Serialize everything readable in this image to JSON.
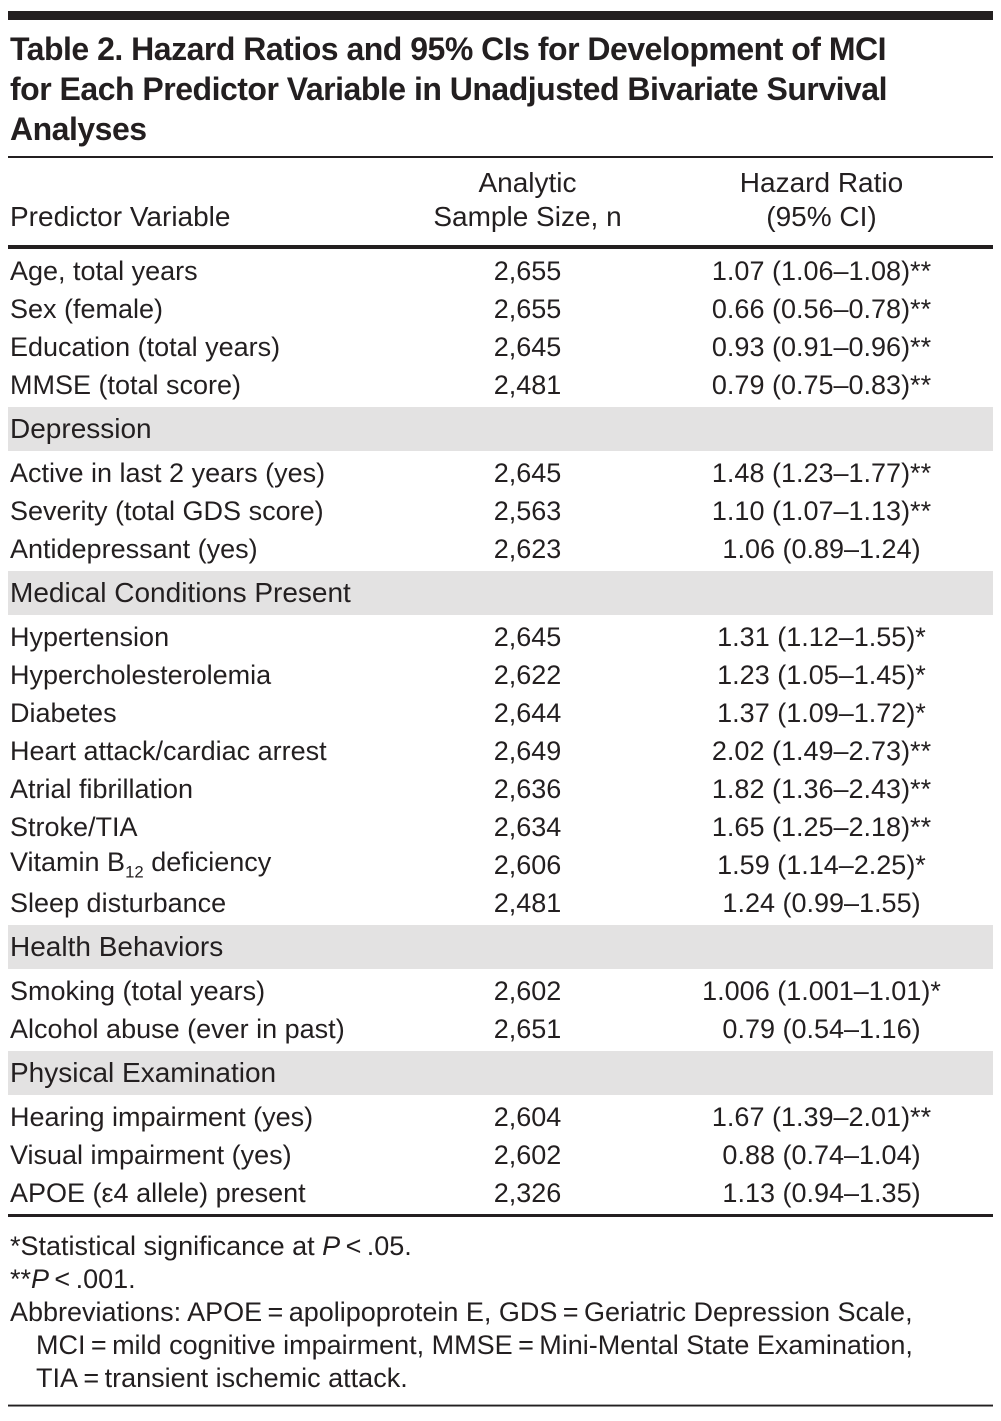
{
  "colors": {
    "text": "#231f20",
    "section_band": "#e3e2e2",
    "rule": "#231f20"
  },
  "table": {
    "title_lines": [
      "Table 2. Hazard Ratios and 95% CIs for Development of MCI",
      "for Each Predictor Variable in Unadjusted Bivariate Survival",
      "Analyses"
    ],
    "columns": [
      {
        "line1": "",
        "line2": "Predictor Variable"
      },
      {
        "line1": "Analytic",
        "line2": "Sample Size, n"
      },
      {
        "line1": "Hazard Ratio",
        "line2": "(95% CI)"
      }
    ],
    "rows": [
      {
        "type": "row",
        "label": "Age, total years",
        "n": "2,655",
        "hr": "1.07 (1.06–1.08)**"
      },
      {
        "type": "row",
        "label": "Sex (female)",
        "n": "2,655",
        "hr": "0.66 (0.56–0.78)**"
      },
      {
        "type": "row",
        "label": "Education (total years)",
        "n": "2,645",
        "hr": "0.93 (0.91–0.96)**"
      },
      {
        "type": "row",
        "label": "MMSE (total score)",
        "n": "2,481",
        "hr": "0.79 (0.75–0.83)**"
      },
      {
        "type": "section",
        "label": "Depression"
      },
      {
        "type": "row",
        "label": "Active in last 2 years (yes)",
        "n": "2,645",
        "hr": "1.48 (1.23–1.77)**"
      },
      {
        "type": "row",
        "label": "Severity (total GDS score)",
        "n": "2,563",
        "hr": "1.10 (1.07–1.13)**"
      },
      {
        "type": "row",
        "label": "Antidepressant (yes)",
        "n": "2,623",
        "hr": "1.06 (0.89–1.24)"
      },
      {
        "type": "section",
        "label": "Medical Conditions Present"
      },
      {
        "type": "row",
        "label": "Hypertension",
        "n": "2,645",
        "hr": "1.31 (1.12–1.55)*"
      },
      {
        "type": "row",
        "label": "Hypercholesterolemia",
        "n": "2,622",
        "hr": "1.23 (1.05–1.45)*"
      },
      {
        "type": "row",
        "label": "Diabetes",
        "n": "2,644",
        "hr": "1.37 (1.09–1.72)*"
      },
      {
        "type": "row",
        "label": "Heart attack/cardiac arrest",
        "n": "2,649",
        "hr": "2.02 (1.49–2.73)**"
      },
      {
        "type": "row",
        "label": "Atrial fibrillation",
        "n": "2,636",
        "hr": "1.82 (1.36–2.43)**"
      },
      {
        "type": "row",
        "label": "Stroke/TIA",
        "n": "2,634",
        "hr": "1.65 (1.25–2.18)**"
      },
      {
        "type": "row",
        "label": "Vitamin B<sub>12</sub> deficiency",
        "n": "2,606",
        "hr": "1.59 (1.14–2.25)*"
      },
      {
        "type": "row",
        "label": "Sleep disturbance",
        "n": "2,481",
        "hr": "1.24 (0.99–1.55)"
      },
      {
        "type": "section",
        "label": "Health Behaviors"
      },
      {
        "type": "row",
        "label": "Smoking (total years)",
        "n": "2,602",
        "hr": "1.006 (1.001–1.01)*"
      },
      {
        "type": "row",
        "label": "Alcohol abuse (ever in past)",
        "n": "2,651",
        "hr": "0.79 (0.54–1.16)"
      },
      {
        "type": "section",
        "label": "Physical Examination"
      },
      {
        "type": "row",
        "label": "Hearing impairment (yes)",
        "n": "2,604",
        "hr": "1.67 (1.39–2.01)**"
      },
      {
        "type": "row",
        "label": "Visual impairment (yes)",
        "n": "2,602",
        "hr": "0.88 (0.74–1.04)"
      },
      {
        "type": "row",
        "label": "APOE (ε4 allele) present",
        "n": "2,326",
        "hr": "1.13 (0.94–1.35)"
      }
    ]
  },
  "footnotes": [
    {
      "indent": false,
      "html": "*Statistical significance at <i>P</i> &lt; .05."
    },
    {
      "indent": false,
      "html": "**<i>P</i> &lt; .001."
    },
    {
      "indent": false,
      "html": "Abbreviations: APOE = apolipoprotein E, GDS = Geriatric Depression Scale,"
    },
    {
      "indent": true,
      "html": "MCI = mild cognitive impairment, MMSE = Mini-Mental State Examination,"
    },
    {
      "indent": true,
      "html": "TIA = transient ischemic attack."
    }
  ]
}
